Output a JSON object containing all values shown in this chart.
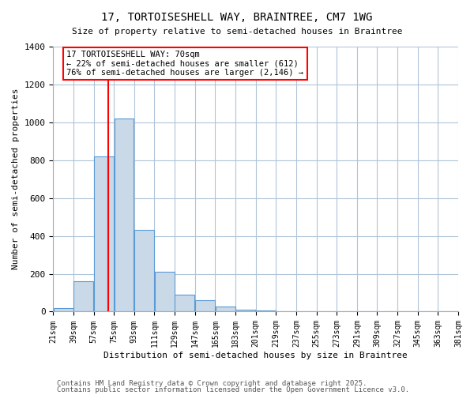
{
  "title1": "17, TORTOISESHELL WAY, BRAINTREE, CM7 1WG",
  "title2": "Size of property relative to semi-detached houses in Braintree",
  "xlabel": "Distribution of semi-detached houses by size in Braintree",
  "ylabel": "Number of semi-detached properties",
  "bin_labels": [
    "21sqm",
    "39sqm",
    "57sqm",
    "75sqm",
    "93sqm",
    "111sqm",
    "129sqm",
    "147sqm",
    "165sqm",
    "183sqm",
    "201sqm",
    "219sqm",
    "237sqm",
    "255sqm",
    "273sqm",
    "291sqm",
    "309sqm",
    "327sqm",
    "345sqm",
    "363sqm",
    "381sqm"
  ],
  "bin_edges": [
    21,
    39,
    57,
    75,
    93,
    111,
    129,
    147,
    165,
    183,
    201,
    219,
    237,
    255,
    273,
    291,
    309,
    327,
    345,
    363,
    381
  ],
  "bar_heights": [
    20,
    160,
    820,
    1020,
    430,
    210,
    90,
    60,
    25,
    10,
    5,
    0,
    0,
    0,
    0,
    0,
    0,
    0,
    0,
    0
  ],
  "bar_color": "#c9d9e8",
  "bar_edge_color": "#5b9bd5",
  "property_line_x": 70,
  "property_line_color": "red",
  "annotation_title": "17 TORTOISESHELL WAY: 70sqm",
  "annotation_line2": "← 22% of semi-detached houses are smaller (612)",
  "annotation_line3": "76% of semi-detached houses are larger (2,146) →",
  "annotation_box_color": "white",
  "annotation_box_edge": "red",
  "ylim": [
    0,
    1400
  ],
  "yticks": [
    0,
    200,
    400,
    600,
    800,
    1000,
    1200,
    1400
  ],
  "footer1": "Contains HM Land Registry data © Crown copyright and database right 2025.",
  "footer2": "Contains public sector information licensed under the Open Government Licence v3.0.",
  "background_color": "white",
  "grid_color": "#b0c4d8"
}
